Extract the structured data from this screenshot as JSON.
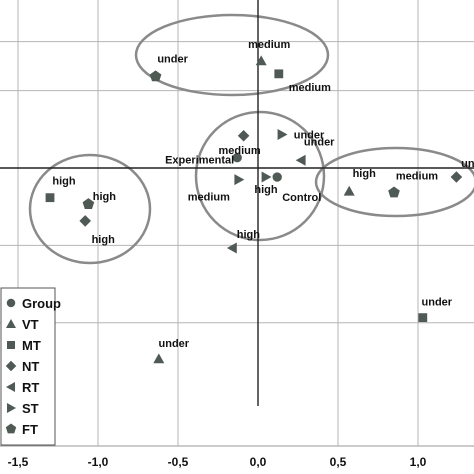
{
  "chart_data": {
    "type": "scatter",
    "title": "",
    "xlabel": "",
    "ylabel": "",
    "xlim": [
      -1.6,
      1.3
    ],
    "ylim": [
      -1.75,
      1.05
    ],
    "x_ticks": [
      -1.5,
      -1.0,
      -0.5,
      0.0,
      0.5,
      1.0
    ],
    "x_tick_labels": [
      "-1,5",
      "-1,0",
      "-0,5",
      "0,0",
      "0,5",
      "1,0"
    ],
    "grid": true,
    "legend": {
      "placement": "bottom-left",
      "entries": [
        {
          "name": "Group",
          "shape": "circle"
        },
        {
          "name": "VT",
          "shape": "triangle-up"
        },
        {
          "name": "MT",
          "shape": "square"
        },
        {
          "name": "NT",
          "shape": "diamond"
        },
        {
          "name": "RT",
          "shape": "triangle-left"
        },
        {
          "name": "ST",
          "shape": "triangle-right"
        },
        {
          "name": "FT",
          "shape": "pentagon"
        }
      ]
    },
    "series": [
      {
        "name": "Group",
        "shape": "circle",
        "points": [
          {
            "x": -0.13,
            "y": 0.08,
            "label": "Experimental"
          },
          {
            "x": 0.12,
            "y": -0.07,
            "label": "Control"
          }
        ]
      },
      {
        "name": "VT",
        "shape": "triangle-up",
        "points": [
          {
            "x": 0.02,
            "y": 0.83,
            "label": "medium"
          },
          {
            "x": 0.57,
            "y": -0.18,
            "label": "high"
          },
          {
            "x": -0.62,
            "y": -1.48,
            "label": "under"
          }
        ]
      },
      {
        "name": "MT",
        "shape": "square",
        "points": [
          {
            "x": 0.13,
            "y": 0.73,
            "label": "medium"
          },
          {
            "x": -1.3,
            "y": -0.23,
            "label": "high"
          },
          {
            "x": 1.03,
            "y": -1.16,
            "label": "under"
          }
        ]
      },
      {
        "name": "NT",
        "shape": "diamond",
        "points": [
          {
            "x": -0.09,
            "y": 0.25,
            "label": "medium"
          },
          {
            "x": -1.08,
            "y": -0.41,
            "label": "high"
          },
          {
            "x": 1.24,
            "y": -0.07,
            "label": "under"
          }
        ]
      },
      {
        "name": "RT",
        "shape": "triangle-left",
        "points": [
          {
            "x": 0.27,
            "y": 0.06,
            "label": "under"
          },
          {
            "x": -0.16,
            "y": -0.62,
            "label": "high"
          }
        ]
      },
      {
        "name": "ST",
        "shape": "triangle-right",
        "points": [
          {
            "x": 0.15,
            "y": 0.26,
            "label": "under"
          },
          {
            "x": -0.12,
            "y": -0.09,
            "label": "medium"
          },
          {
            "x": 0.05,
            "y": -0.07,
            "label": "high"
          }
        ]
      },
      {
        "name": "FT",
        "shape": "pentagon",
        "points": [
          {
            "x": -0.64,
            "y": 0.71,
            "label": "under"
          },
          {
            "x": -1.06,
            "y": -0.28,
            "label": "high"
          },
          {
            "x": 0.85,
            "y": -0.19,
            "label": "medium"
          }
        ]
      }
    ]
  },
  "colors": {
    "marker": "#4f5a55",
    "axis": "#222222",
    "grid": "#b5b5b5",
    "ellipse": "#8a8a8a"
  }
}
